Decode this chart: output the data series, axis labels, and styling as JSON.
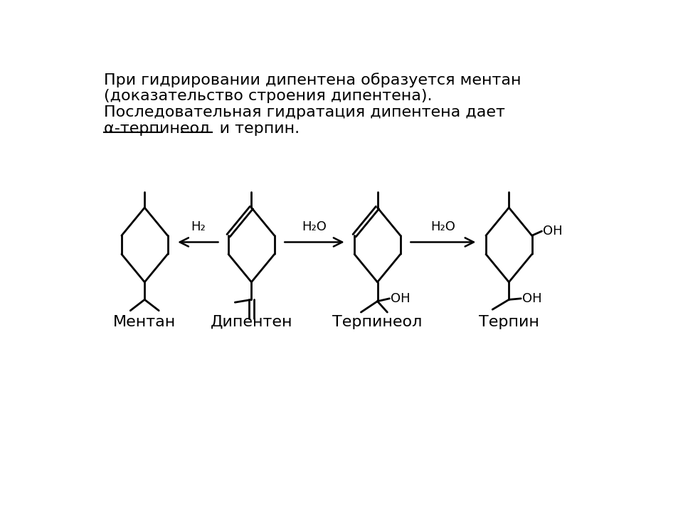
{
  "background_color": "#ffffff",
  "molecule_labels": [
    "Ментан",
    "Дипентен",
    "Терпинеол",
    "Терпин"
  ],
  "arrow1_label": "H₂",
  "arrow2_label": "H₂O",
  "arrow3_label": "H₂O",
  "figsize": [
    9.6,
    7.2
  ],
  "dpi": 100,
  "text_lines": [
    "При гидрировании дипентена образуется ментан",
    "(доказательство строения дипентена).",
    "Последовательная гидратация дипентена дает",
    "α-терпинеол  и терпин."
  ]
}
